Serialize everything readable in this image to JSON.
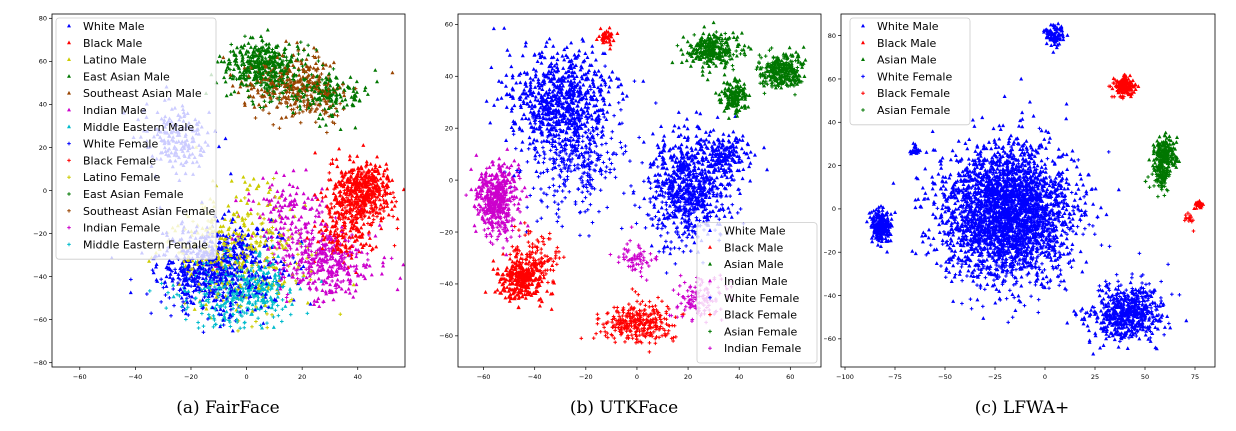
{
  "chart_data": [
    {
      "type": "scatter",
      "caption": "(a) FairFace",
      "xlim": [
        -70,
        57
      ],
      "ylim": [
        -82,
        82
      ],
      "xticks": [
        -60,
        -40,
        -20,
        0,
        20,
        40
      ],
      "yticks": [
        -80,
        -60,
        -40,
        -20,
        0,
        20,
        40,
        60,
        80
      ],
      "legend_position": "top-left",
      "series": [
        {
          "name": "White Male",
          "color": "#0000ff",
          "marker": "triangle",
          "clusters": [
            [
              -10,
              -35,
              20,
              18,
              500
            ],
            [
              -25,
              25,
              12,
              15,
              180
            ]
          ]
        },
        {
          "name": "Black Male",
          "color": "#ff0000",
          "marker": "triangle",
          "clusters": [
            [
              42,
              0,
              10,
              12,
              320
            ],
            [
              35,
              -20,
              10,
              12,
              120
            ]
          ]
        },
        {
          "name": "Latino Male",
          "color": "#cccc00",
          "marker": "triangle",
          "clusters": [
            [
              -5,
              -25,
              22,
              25,
              220
            ]
          ]
        },
        {
          "name": "East Asian Male",
          "color": "#007700",
          "marker": "triangle",
          "clusters": [
            [
              5,
              58,
              12,
              10,
              260
            ],
            [
              30,
              45,
              12,
              10,
              160
            ]
          ]
        },
        {
          "name": "Southeast Asian Male",
          "color": "#994400",
          "marker": "triangle",
          "clusters": [
            [
              15,
              50,
              18,
              12,
              200
            ]
          ]
        },
        {
          "name": "Indian Male",
          "color": "#cc00cc",
          "marker": "triangle",
          "clusters": [
            [
              30,
              -35,
              14,
              15,
              200
            ],
            [
              15,
              -10,
              15,
              15,
              120
            ]
          ]
        },
        {
          "name": "Middle Eastern Male",
          "color": "#00bbcc",
          "marker": "triangle",
          "clusters": [
            [
              0,
              -45,
              18,
              15,
              200
            ]
          ]
        },
        {
          "name": "White Female",
          "color": "#0000ff",
          "marker": "plus",
          "clusters": [
            [
              -15,
              -40,
              20,
              18,
              160
            ]
          ]
        },
        {
          "name": "Black Female",
          "color": "#ff0000",
          "marker": "plus",
          "clusters": [
            [
              40,
              -5,
              10,
              12,
              220
            ]
          ]
        },
        {
          "name": "Latino Female",
          "color": "#cccc00",
          "marker": "plus",
          "clusters": [
            [
              0,
              -30,
              22,
              22,
              160
            ]
          ]
        },
        {
          "name": "East Asian Female",
          "color": "#007700",
          "marker": "plus",
          "clusters": [
            [
              10,
              55,
              14,
              12,
              180
            ]
          ]
        },
        {
          "name": "Southeast Asian Female",
          "color": "#994400",
          "marker": "plus",
          "clusters": [
            [
              20,
              45,
              15,
              12,
              140
            ]
          ]
        },
        {
          "name": "Indian Female",
          "color": "#cc00cc",
          "marker": "plus",
          "clusters": [
            [
              25,
              -30,
              15,
              15,
              160
            ]
          ]
        },
        {
          "name": "Middle Eastern Female",
          "color": "#00bbcc",
          "marker": "plus",
          "clusters": [
            [
              -5,
              -50,
              18,
              14,
              180
            ]
          ]
        }
      ]
    },
    {
      "type": "scatter",
      "caption": "(b) UTKFace",
      "xlim": [
        -70,
        72
      ],
      "ylim": [
        -72,
        64
      ],
      "xticks": [
        -60,
        -40,
        -20,
        0,
        20,
        40,
        60
      ],
      "yticks": [
        -60,
        -40,
        -20,
        0,
        20,
        40,
        60
      ],
      "legend_position": "bottom-right",
      "series": [
        {
          "name": "White Male",
          "color": "#0000ff",
          "marker": "triangle",
          "clusters": [
            [
              -30,
              30,
              18,
              18,
              700
            ],
            [
              20,
              0,
              15,
              18,
              500
            ],
            [
              35,
              10,
              8,
              8,
              150
            ]
          ]
        },
        {
          "name": "Black Male",
          "color": "#ff0000",
          "marker": "triangle",
          "clusters": [
            [
              -45,
              -38,
              8,
              8,
              300
            ],
            [
              -12,
              55,
              3,
              3,
              40
            ]
          ]
        },
        {
          "name": "Asian Male",
          "color": "#007700",
          "marker": "triangle",
          "clusters": [
            [
              30,
              50,
              10,
              6,
              200
            ],
            [
              38,
              32,
              5,
              6,
              150
            ],
            [
              58,
              42,
              7,
              6,
              150
            ]
          ]
        },
        {
          "name": "Indian Male",
          "color": "#cc00cc",
          "marker": "triangle",
          "clusters": [
            [
              -55,
              -5,
              7,
              12,
              250
            ]
          ]
        },
        {
          "name": "White Female",
          "color": "#0000ff",
          "marker": "plus",
          "clusters": [
            [
              -25,
              10,
              18,
              20,
              350
            ],
            [
              20,
              -10,
              15,
              15,
              250
            ]
          ]
        },
        {
          "name": "Black Female",
          "color": "#ff0000",
          "marker": "plus",
          "clusters": [
            [
              0,
              -55,
              12,
              7,
              320
            ],
            [
              -40,
              -30,
              8,
              8,
              120
            ]
          ]
        },
        {
          "name": "Asian Female",
          "color": "#007700",
          "marker": "plus",
          "clusters": [
            [
              55,
              42,
              8,
              6,
              150
            ],
            [
              30,
              50,
              8,
              5,
              100
            ]
          ]
        },
        {
          "name": "Indian Female",
          "color": "#cc00cc",
          "marker": "plus",
          "clusters": [
            [
              -55,
              -10,
              7,
              12,
              200
            ],
            [
              25,
              -45,
              10,
              8,
              120
            ],
            [
              0,
              -30,
              6,
              6,
              60
            ]
          ]
        }
      ]
    },
    {
      "type": "scatter",
      "caption": "(c) LFWA+",
      "xlim": [
        -102,
        85
      ],
      "ylim": [
        -73,
        90
      ],
      "xticks": [
        -100,
        -75,
        -50,
        -25,
        0,
        25,
        50,
        75
      ],
      "yticks": [
        -60,
        -40,
        -20,
        0,
        20,
        40,
        60,
        80
      ],
      "legend_position": "top-left",
      "series": [
        {
          "name": "White Male",
          "color": "#0000ff",
          "marker": "triangle",
          "clusters": [
            [
              -20,
              0,
              30,
              28,
              2100
            ],
            [
              40,
              -50,
              15,
              10,
              400
            ],
            [
              -82,
              -8,
              5,
              7,
              220
            ],
            [
              5,
              80,
              4,
              4,
              90
            ],
            [
              -65,
              27,
              2,
              2,
              25
            ]
          ]
        },
        {
          "name": "Black Male",
          "color": "#ff0000",
          "marker": "triangle",
          "clusters": [
            [
              40,
              57,
              4,
              4,
              120
            ],
            [
              77,
              2,
              2,
              2,
              30
            ]
          ]
        },
        {
          "name": "Asian Male",
          "color": "#007700",
          "marker": "triangle",
          "clusters": [
            [
              60,
              25,
              5,
              8,
              200
            ]
          ]
        },
        {
          "name": "White Female",
          "color": "#0000ff",
          "marker": "plus",
          "clusters": [
            [
              -15,
              -10,
              28,
              25,
              700
            ],
            [
              45,
              -45,
              15,
              12,
              200
            ]
          ]
        },
        {
          "name": "Black Female",
          "color": "#ff0000",
          "marker": "plus",
          "clusters": [
            [
              38,
              55,
              4,
              4,
              50
            ],
            [
              72,
              -5,
              3,
              3,
              15
            ]
          ]
        },
        {
          "name": "Asian Female",
          "color": "#007700",
          "marker": "plus",
          "clusters": [
            [
              58,
              15,
              4,
              6,
              100
            ]
          ]
        }
      ]
    }
  ]
}
